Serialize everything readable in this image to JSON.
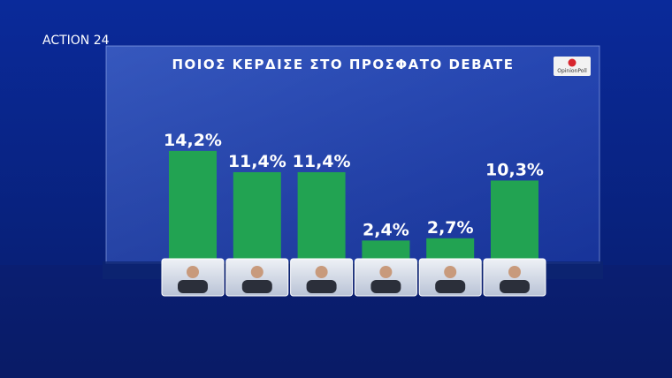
{
  "logo": "ACTION 24",
  "chart_data": {
    "type": "bar",
    "title": "ΠΟΙΟΣ ΚΕΡΔΙΣΕ ΣΤΟ ΠΡΟΣΦΑΤΟ DEBATE",
    "source": "OpinionPoll",
    "values": [
      14.2,
      11.4,
      11.4,
      2.4,
      2.7,
      10.3
    ],
    "value_labels": [
      "14,2%",
      "11,4%",
      "11,4%",
      "2,4%",
      "2,7%",
      "10,3%"
    ],
    "color": "#22a352"
  }
}
